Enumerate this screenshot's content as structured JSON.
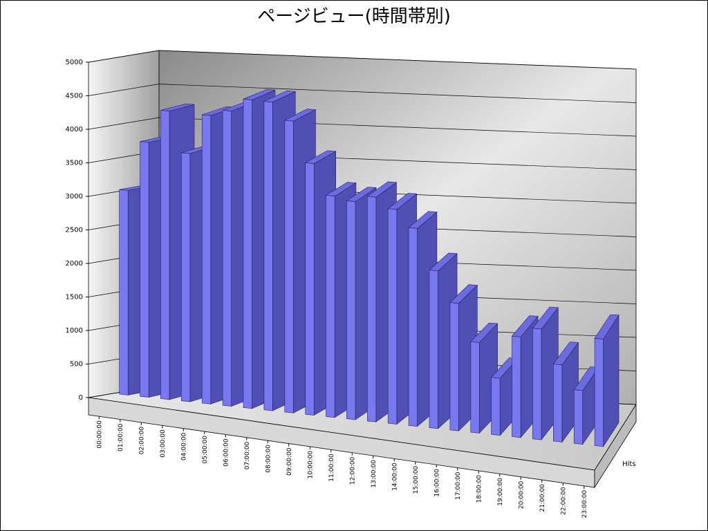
{
  "chart_data": {
    "type": "bar3d",
    "title": "ページビュー(時間帯別)",
    "categories": [
      "00:00:00",
      "01:00:00",
      "02:00:00",
      "03:00:00",
      "04:00:00",
      "05:00:00",
      "06:00:00",
      "07:00:00",
      "08:00:00",
      "09:00:00",
      "10:00:00",
      "11:00:00",
      "12:00:00",
      "13:00:00",
      "14:00:00",
      "15:00:00",
      "16:00:00",
      "17:00:00",
      "18:00:00",
      "19:00:00",
      "20:00:00",
      "21:00:00",
      "22:00:00",
      "23:00:00"
    ],
    "series": [
      {
        "name": "Hits",
        "color": "#7878f0",
        "values": [
          3050,
          3800,
          4300,
          3700,
          4300,
          4400,
          4600,
          4600,
          4350,
          3750,
          3300,
          3250,
          3350,
          3200,
          2950,
          2350,
          1900,
          1350,
          850,
          1500,
          1650,
          1150,
          800,
          1600
        ]
      }
    ],
    "ylim": [
      0,
      5000
    ],
    "yticks": [
      0,
      500,
      1000,
      1500,
      2000,
      2500,
      3000,
      3500,
      4000,
      4500,
      5000
    ],
    "grid": true
  }
}
